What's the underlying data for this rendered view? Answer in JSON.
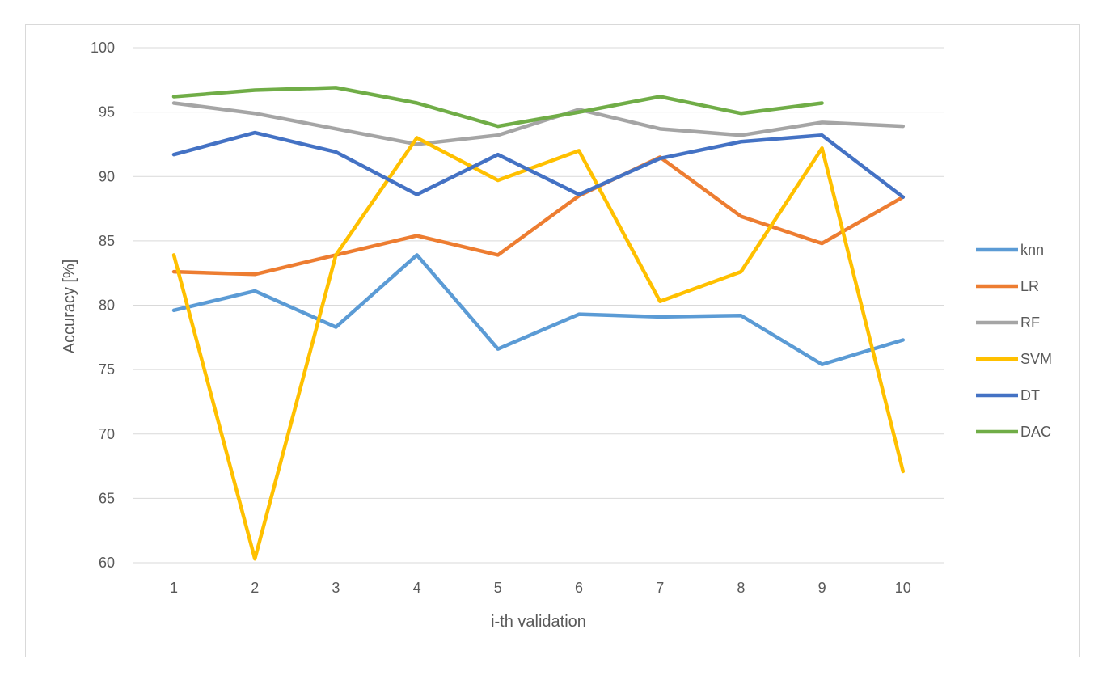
{
  "chart_data": {
    "type": "line",
    "title": "",
    "xlabel": "i-th validation",
    "ylabel": "Accuracy [%]",
    "x": [
      "1",
      "2",
      "3",
      "4",
      "5",
      "6",
      "7",
      "8",
      "9",
      "10"
    ],
    "ylim": [
      60,
      100
    ],
    "yticks": [
      60,
      65,
      70,
      75,
      80,
      85,
      90,
      95,
      100
    ],
    "grid": true,
    "legend_position": "right",
    "series": [
      {
        "name": "knn",
        "color": "#5b9bd5",
        "values": [
          79.6,
          81.1,
          78.3,
          83.9,
          76.6,
          79.3,
          79.1,
          79.2,
          75.4,
          77.3
        ]
      },
      {
        "name": "LR",
        "color": "#ed7d31",
        "values": [
          82.6,
          82.4,
          83.9,
          85.4,
          83.9,
          88.5,
          91.5,
          86.9,
          84.8,
          88.4
        ]
      },
      {
        "name": "RF",
        "color": "#a5a5a5",
        "values": [
          95.7,
          94.9,
          93.7,
          92.5,
          93.2,
          95.2,
          93.7,
          93.2,
          94.2,
          93.9
        ]
      },
      {
        "name": "SVM",
        "color": "#ffc000",
        "values": [
          83.9,
          60.3,
          83.9,
          93.0,
          89.7,
          92.0,
          80.3,
          82.6,
          92.2,
          67.1
        ]
      },
      {
        "name": "DT",
        "color": "#4472c4",
        "values": [
          91.7,
          93.4,
          91.9,
          88.6,
          91.7,
          88.6,
          91.4,
          92.7,
          93.2,
          88.4
        ]
      },
      {
        "name": "DAC",
        "color": "#70ad47",
        "values": [
          96.2,
          96.7,
          96.9,
          95.7,
          93.9,
          95.0,
          96.2,
          94.9,
          95.7,
          null
        ]
      }
    ]
  }
}
